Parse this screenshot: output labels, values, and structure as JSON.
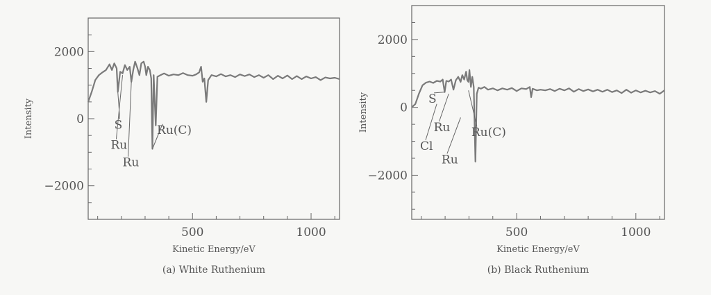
{
  "chart_data": [
    {
      "type": "line",
      "caption": "(a) White Ruthenium",
      "xlabel": "Kinetic Energy/eV",
      "ylabel": "Intensity",
      "xlim": [
        60,
        1120
      ],
      "ylim": [
        -3000,
        3000
      ],
      "xticks": [
        500,
        1000
      ],
      "xtick_labels": [
        "500",
        "1000"
      ],
      "yticks": [
        2000,
        0,
        -2000
      ],
      "ytick_labels": [
        "2000",
        "0",
        "−2000"
      ],
      "series": [
        {
          "points": [
            [
              60,
              500
            ],
            [
              75,
              800
            ],
            [
              90,
              1150
            ],
            [
              105,
              1300
            ],
            [
              120,
              1380
            ],
            [
              135,
              1450
            ],
            [
              150,
              1620
            ],
            [
              160,
              1450
            ],
            [
              170,
              1650
            ],
            [
              180,
              1500
            ],
            [
              185,
              800
            ],
            [
              195,
              1400
            ],
            [
              205,
              1350
            ],
            [
              215,
              1600
            ],
            [
              225,
              1450
            ],
            [
              235,
              1550
            ],
            [
              242,
              1100
            ],
            [
              250,
              1450
            ],
            [
              258,
              1700
            ],
            [
              268,
              1500
            ],
            [
              276,
              1300
            ],
            [
              284,
              1650
            ],
            [
              294,
              1700
            ],
            [
              300,
              1550
            ],
            [
              305,
              1300
            ],
            [
              312,
              1550
            ],
            [
              320,
              1450
            ],
            [
              326,
              1200
            ],
            [
              331,
              -900
            ],
            [
              336,
              1300
            ],
            [
              345,
              -200
            ],
            [
              352,
              1250
            ],
            [
              365,
              1300
            ],
            [
              380,
              1350
            ],
            [
              400,
              1280
            ],
            [
              420,
              1320
            ],
            [
              440,
              1300
            ],
            [
              460,
              1360
            ],
            [
              480,
              1300
            ],
            [
              500,
              1280
            ],
            [
              515,
              1320
            ],
            [
              528,
              1380
            ],
            [
              536,
              1550
            ],
            [
              543,
              1100
            ],
            [
              550,
              1200
            ],
            [
              558,
              500
            ],
            [
              566,
              1150
            ],
            [
              580,
              1300
            ],
            [
              600,
              1260
            ],
            [
              620,
              1330
            ],
            [
              640,
              1260
            ],
            [
              660,
              1300
            ],
            [
              680,
              1240
            ],
            [
              700,
              1320
            ],
            [
              720,
              1270
            ],
            [
              740,
              1320
            ],
            [
              760,
              1240
            ],
            [
              780,
              1300
            ],
            [
              800,
              1220
            ],
            [
              820,
              1300
            ],
            [
              840,
              1180
            ],
            [
              860,
              1280
            ],
            [
              880,
              1200
            ],
            [
              900,
              1290
            ],
            [
              920,
              1180
            ],
            [
              940,
              1270
            ],
            [
              960,
              1180
            ],
            [
              980,
              1260
            ],
            [
              1000,
              1200
            ],
            [
              1020,
              1240
            ],
            [
              1040,
              1150
            ],
            [
              1060,
              1230
            ],
            [
              1080,
              1200
            ],
            [
              1100,
              1220
            ],
            [
              1120,
              1180
            ]
          ]
        }
      ],
      "annotations": [
        {
          "text": "S",
          "x": 170,
          "y": -300,
          "tip_x": 185,
          "tip_y": 800
        },
        {
          "text": "Ru",
          "x": 155,
          "y": -900,
          "tip_x": 205,
          "tip_y": 1300
        },
        {
          "text": "Ru",
          "x": 205,
          "y": -1420,
          "tip_x": 242,
          "tip_y": 1100
        },
        {
          "text": "Ru(C)",
          "x": 350,
          "y": -450,
          "tip_x": 331,
          "tip_y": -900
        }
      ]
    },
    {
      "type": "line",
      "caption": "(b) Black Ruthenium",
      "xlabel": "Kinetic Energy/eV",
      "ylabel": "Intensity",
      "xlim": [
        60,
        1120
      ],
      "ylim": [
        -3300,
        3000
      ],
      "xticks": [
        500,
        1000
      ],
      "xtick_labels": [
        "500",
        "1000"
      ],
      "yticks": [
        2000,
        0,
        -2000
      ],
      "ytick_labels": [
        "2000",
        "0",
        "−2000"
      ],
      "series": [
        {
          "points": [
            [
              60,
              0
            ],
            [
              75,
              100
            ],
            [
              90,
              400
            ],
            [
              105,
              650
            ],
            [
              120,
              730
            ],
            [
              135,
              760
            ],
            [
              150,
              720
            ],
            [
              165,
              780
            ],
            [
              180,
              760
            ],
            [
              190,
              820
            ],
            [
              198,
              450
            ],
            [
              205,
              780
            ],
            [
              215,
              760
            ],
            [
              225,
              820
            ],
            [
              235,
              520
            ],
            [
              245,
              800
            ],
            [
              255,
              900
            ],
            [
              265,
              750
            ],
            [
              272,
              950
            ],
            [
              280,
              820
            ],
            [
              288,
              1050
            ],
            [
              293,
              800
            ],
            [
              298,
              750
            ],
            [
              302,
              1100
            ],
            [
              308,
              600
            ],
            [
              314,
              900
            ],
            [
              320,
              600
            ],
            [
              327,
              -1600
            ],
            [
              333,
              400
            ],
            [
              340,
              580
            ],
            [
              350,
              550
            ],
            [
              365,
              600
            ],
            [
              380,
              520
            ],
            [
              400,
              560
            ],
            [
              420,
              500
            ],
            [
              440,
              560
            ],
            [
              460,
              520
            ],
            [
              480,
              570
            ],
            [
              500,
              480
            ],
            [
              520,
              560
            ],
            [
              540,
              540
            ],
            [
              555,
              600
            ],
            [
              561,
              300
            ],
            [
              567,
              550
            ],
            [
              585,
              500
            ],
            [
              600,
              520
            ],
            [
              620,
              500
            ],
            [
              640,
              540
            ],
            [
              660,
              480
            ],
            [
              680,
              550
            ],
            [
              700,
              500
            ],
            [
              720,
              560
            ],
            [
              740,
              460
            ],
            [
              760,
              540
            ],
            [
              780,
              480
            ],
            [
              800,
              530
            ],
            [
              820,
              470
            ],
            [
              840,
              520
            ],
            [
              860,
              460
            ],
            [
              880,
              520
            ],
            [
              900,
              450
            ],
            [
              920,
              500
            ],
            [
              940,
              420
            ],
            [
              960,
              520
            ],
            [
              980,
              430
            ],
            [
              1000,
              500
            ],
            [
              1020,
              440
            ],
            [
              1040,
              490
            ],
            [
              1060,
              440
            ],
            [
              1080,
              480
            ],
            [
              1100,
              400
            ],
            [
              1120,
              500
            ]
          ]
        }
      ],
      "annotations": [
        {
          "text": "S",
          "x": 130,
          "y": 140,
          "tip_x": 198,
          "tip_y": 450
        },
        {
          "text": "Ru",
          "x": 152,
          "y": -700,
          "tip_x": 215,
          "tip_y": 400
        },
        {
          "text": "Cl",
          "x": 95,
          "y": -1250,
          "tip_x": 165,
          "tip_y": 100
        },
        {
          "text": "Ru",
          "x": 185,
          "y": -1650,
          "tip_x": 265,
          "tip_y": -300
        },
        {
          "text": "Ru(C)",
          "x": 310,
          "y": -850,
          "tip_x": 298,
          "tip_y": 500
        }
      ]
    }
  ]
}
